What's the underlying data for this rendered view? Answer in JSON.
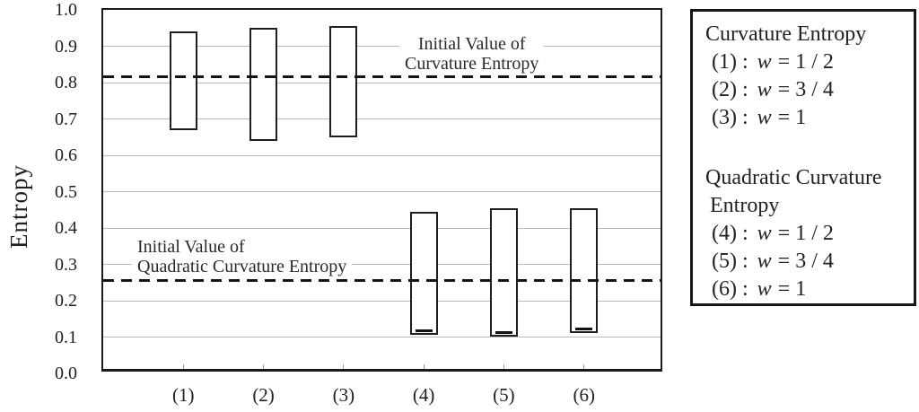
{
  "chart_data": {
    "type": "bar",
    "subtype": "floating-range-bars",
    "title": "",
    "xlabel": "",
    "y_axis": {
      "label": "Entropy",
      "min": 0.0,
      "max": 1.0,
      "step": 0.1,
      "tick_labels": [
        "0.0",
        "0.1",
        "0.2",
        "0.3",
        "0.4",
        "0.5",
        "0.6",
        "0.7",
        "0.8",
        "0.9",
        "1.0"
      ]
    },
    "grid": "horizontal",
    "categories": [
      "(1)",
      "(2)",
      "(3)",
      "(4)",
      "(5)",
      "(6)"
    ],
    "bars": [
      {
        "category": "(1)",
        "low": 0.67,
        "high": 0.94,
        "low_marker": false
      },
      {
        "category": "(2)",
        "low": 0.64,
        "high": 0.95,
        "low_marker": false
      },
      {
        "category": "(3)",
        "low": 0.65,
        "high": 0.955,
        "low_marker": false
      },
      {
        "category": "(4)",
        "low": 0.105,
        "high": 0.445,
        "low_marker": true
      },
      {
        "category": "(5)",
        "low": 0.1,
        "high": 0.455,
        "low_marker": true
      },
      {
        "category": "(6)",
        "low": 0.11,
        "high": 0.455,
        "low_marker": true
      }
    ],
    "reference_lines": [
      {
        "value": 0.815,
        "style": "dashed",
        "label_line1": "Initial Value of",
        "label_line2": "Curvature Entropy"
      },
      {
        "value": 0.255,
        "style": "dashed",
        "label_line1": "Initial Value of",
        "label_line2": "Quadratic Curvature Entropy"
      }
    ],
    "colors": {
      "bar_fill": "#ffffff",
      "bar_border": "#1f1f1f",
      "gridline": "#b8b8b8",
      "axis": "#1a1a1a",
      "dashed_line": "#151515",
      "text": "#1f1f1f"
    }
  },
  "legend": {
    "section1": {
      "title": "Curvature Entropy",
      "items": [
        {
          "num": "(1) :",
          "var": "w",
          "val": "= 1 / 2"
        },
        {
          "num": "(2) :",
          "var": "w",
          "val": "= 3 / 4"
        },
        {
          "num": "(3) :",
          "var": "w",
          "val": "= 1"
        }
      ]
    },
    "section2": {
      "title_line1": "Quadratic Curvature",
      "title_line2": "Entropy",
      "items": [
        {
          "num": "(4) :",
          "var": "w",
          "val": "= 1 / 2"
        },
        {
          "num": "(5) :",
          "var": "w",
          "val": "= 3 / 4"
        },
        {
          "num": "(6) :",
          "var": "w",
          "val": "= 1"
        }
      ]
    }
  }
}
